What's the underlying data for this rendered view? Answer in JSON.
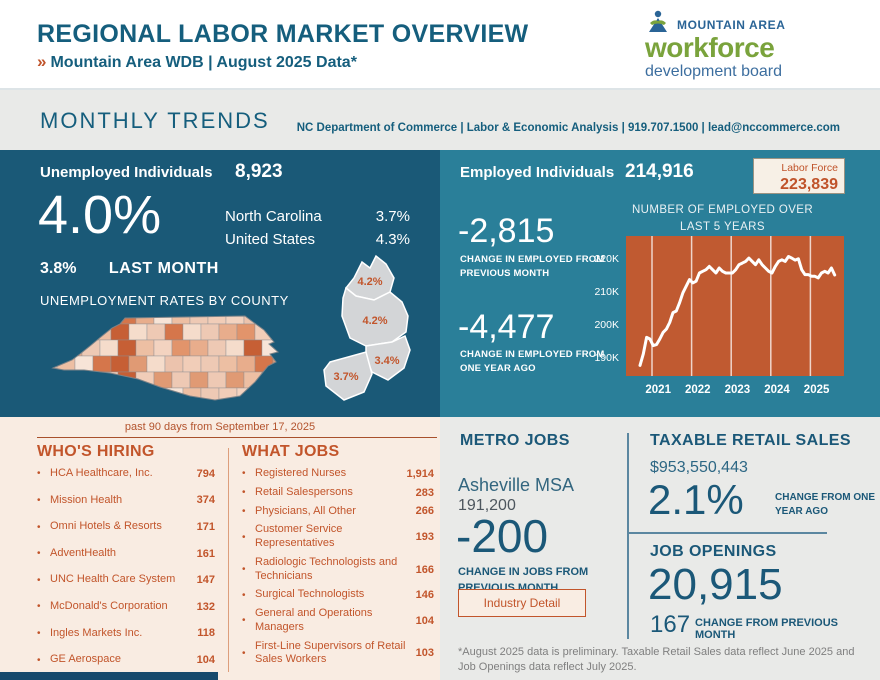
{
  "header": {
    "title": "REGIONAL LABOR MARKET OVERVIEW",
    "chevrons": "»",
    "subtitle": "Mountain Area WDB | August 2025 Data*",
    "logo": {
      "top": "MOUNTAIN AREA",
      "middle": "workforce",
      "bottom": "development board",
      "person_icon": "person-mountain-icon"
    }
  },
  "trends_bar": {
    "title": "MONTHLY TRENDS",
    "contact": "NC Department of Commerce | Labor & Economic Analysis | 919.707.1500 | lead@nccommerce.com"
  },
  "unemployment": {
    "label": "Unemployed Individuals",
    "count": "8,923",
    "rate": "4.0%",
    "nc_label": "North Carolina",
    "nc_rate": "3.7%",
    "us_label": "United States",
    "us_rate": "4.3%",
    "last_month_rate": "3.8%",
    "last_month_label": "LAST MONTH",
    "county_map_title": "UNEMPLOYMENT RATES BY COUNTY",
    "region_rates": [
      "4.2%",
      "4.2%",
      "3.4%",
      "3.7%"
    ],
    "map_palette": [
      "#f5dccb",
      "#edbfa3",
      "#e09a74",
      "#f1cdb8",
      "#d5764b",
      "#ecc3ad",
      "#f7e4d7",
      "#e2946b",
      "#eec9b4",
      "#c65f35",
      "#f3d3c0",
      "#e8ad8c"
    ]
  },
  "employment": {
    "label": "Employed Individuals",
    "count": "214,916",
    "labor_force_label": "Labor Force",
    "labor_force_value": "223,839",
    "change_month": "-2,815",
    "change_month_label": "CHANGE IN EMPLOYED FROM PREVIOUS MONTH",
    "change_year": "-4,477",
    "change_year_label": "CHANGE IN EMPLOYED FROM ONE YEAR AGO"
  },
  "chart_data": {
    "type": "line",
    "title": "NUMBER OF EMPLOYED OVER LAST 5 YEARS",
    "x_start": "2020-09",
    "x_end": "2025-08",
    "x_tick_labels": [
      "2021",
      "2022",
      "2023",
      "2024",
      "2025"
    ],
    "year_start_indices": [
      4,
      16,
      28,
      40,
      52
    ],
    "y_tick_labels": [
      "220K",
      "210K",
      "200K",
      "190K"
    ],
    "y_tick_values": [
      220,
      210,
      200,
      190
    ],
    "ylim": [
      184,
      227
    ],
    "values_thousands": [
      187.5,
      191,
      196,
      195.5,
      193.5,
      193.8,
      195.5,
      197.5,
      198.5,
      200.5,
      203.5,
      204,
      206.5,
      209.5,
      211.5,
      213.5,
      212.5,
      213,
      215.5,
      216,
      216.5,
      217.5,
      216.5,
      215.5,
      217,
      216,
      215.5,
      215.5,
      215.5,
      216.5,
      218,
      218.5,
      219,
      220,
      219,
      218,
      219.5,
      218,
      217,
      216,
      215.5,
      217.5,
      219,
      219.5,
      219,
      220.5,
      220,
      219.4,
      219.8,
      216.5,
      215,
      215,
      214.5,
      214.5,
      214,
      215.5,
      216,
      215.5,
      217,
      214.9
    ],
    "line_color": "#ffffff",
    "bg_color": "#c05a31",
    "grid": "vertical-year-lines",
    "legend": "none"
  },
  "past_90": "past 90 days from September 17, 2025",
  "whos_hiring": {
    "title": "WHO'S HIRING",
    "items": [
      {
        "name": "HCA Healthcare, Inc.",
        "count": "794"
      },
      {
        "name": "Mission Health",
        "count": "374"
      },
      {
        "name": "Omni Hotels & Resorts",
        "count": "171"
      },
      {
        "name": "AdventHealth",
        "count": "161"
      },
      {
        "name": "UNC Health Care System",
        "count": "147"
      },
      {
        "name": "McDonald's Corporation",
        "count": "132"
      },
      {
        "name": "Ingles Markets Inc.",
        "count": "118"
      },
      {
        "name": "GE Aerospace",
        "count": "104"
      }
    ]
  },
  "what_jobs": {
    "title": "WHAT JOBS",
    "items": [
      {
        "name": "Registered Nurses",
        "count": "1,914"
      },
      {
        "name": "Retail Salespersons",
        "count": "283"
      },
      {
        "name": "Physicians, All Other",
        "count": "266"
      },
      {
        "name": "Customer Service Representatives",
        "count": "193"
      },
      {
        "name": "Radiologic Technologists and Technicians",
        "count": "166"
      },
      {
        "name": "Surgical Technologists",
        "count": "146"
      },
      {
        "name": "General and Operations Managers",
        "count": "104"
      },
      {
        "name": "First-Line Supervisors of Retail Sales Workers",
        "count": "103"
      }
    ]
  },
  "metro_jobs": {
    "title": "METRO JOBS",
    "area": "Asheville MSA",
    "jobs": "191,200",
    "change": "-200",
    "change_label": "CHANGE IN JOBS FROM PREVIOUS MONTH",
    "button_label": "Industry Detail"
  },
  "retail": {
    "title": "TAXABLE RETAIL SALES",
    "value": "$953,550,443",
    "change": "2.1%",
    "change_label": "CHANGE FROM ONE YEAR AGO"
  },
  "openings": {
    "title": "JOB OPENINGS",
    "value": "20,915",
    "change": "167",
    "change_label": "CHANGE FROM PREVIOUS MONTH"
  },
  "footnote": "*August 2025 data is preliminary. Taxable Retail Sales data reflect June 2025 and Job Openings data reflect July 2025.",
  "colors": {
    "navy_panel": "#1a5977",
    "teal_panel": "#2a7f99",
    "chart_orange": "#c05a31",
    "accent_orange": "#c2552b",
    "header_blue": "#155e7d",
    "logo_green": "#7aa33c",
    "logo_blue": "#2a6496",
    "cream_bg": "#f9ece2",
    "gray_bg": "#e9eae8"
  }
}
